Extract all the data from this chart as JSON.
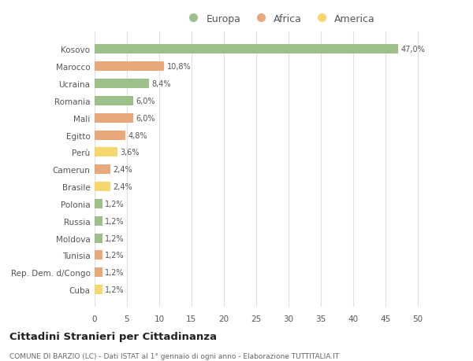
{
  "countries": [
    "Kosovo",
    "Marocco",
    "Ucraina",
    "Romania",
    "Mali",
    "Egitto",
    "Perù",
    "Camerun",
    "Brasile",
    "Polonia",
    "Russia",
    "Moldova",
    "Tunisia",
    "Rep. Dem. d/Congo",
    "Cuba"
  ],
  "values": [
    47.0,
    10.8,
    8.4,
    6.0,
    6.0,
    4.8,
    3.6,
    2.4,
    2.4,
    1.2,
    1.2,
    1.2,
    1.2,
    1.2,
    1.2
  ],
  "labels": [
    "47,0%",
    "10,8%",
    "8,4%",
    "6,0%",
    "6,0%",
    "4,8%",
    "3,6%",
    "2,4%",
    "2,4%",
    "1,2%",
    "1,2%",
    "1,2%",
    "1,2%",
    "1,2%",
    "1,2%"
  ],
  "continents": [
    "Europa",
    "Africa",
    "Europa",
    "Europa",
    "Africa",
    "Africa",
    "America",
    "Africa",
    "America",
    "Europa",
    "Europa",
    "Europa",
    "Africa",
    "Africa",
    "America"
  ],
  "colors": {
    "Europa": "#9dc08b",
    "Africa": "#e8a87c",
    "America": "#f5d76e"
  },
  "title": "Cittadini Stranieri per Cittadinanza",
  "subtitle": "COMUNE DI BARZIO (LC) - Dati ISTAT al 1° gennaio di ogni anno - Elaborazione TUTTITALIA.IT",
  "xlim": [
    0,
    52
  ],
  "xticks": [
    0,
    5,
    10,
    15,
    20,
    25,
    30,
    35,
    40,
    45,
    50
  ],
  "background_color": "#ffffff",
  "grid_color": "#e0e0e0",
  "bar_height": 0.55
}
